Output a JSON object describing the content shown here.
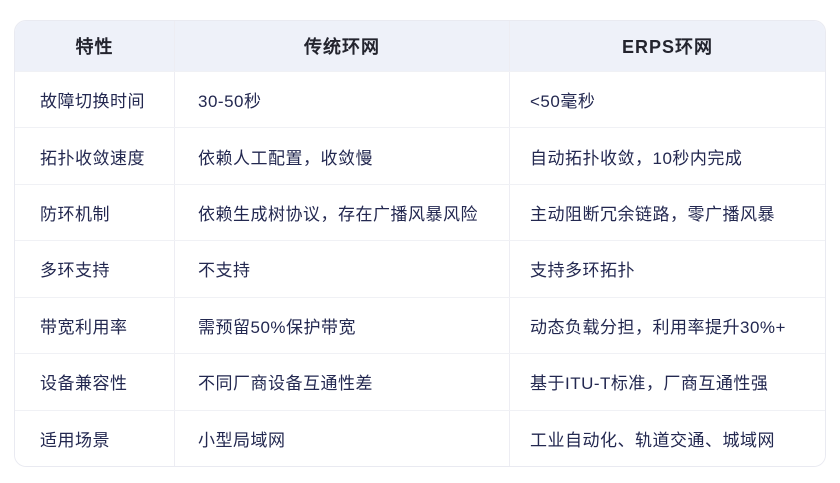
{
  "colors": {
    "header_bg": "#eef1f9",
    "header_text": "#23242e",
    "cell_text": "#232850",
    "outer_border": "#e9eaf1",
    "column_divider": "#ededf3",
    "row_divider": "#f0f1f5",
    "table_bg": "#ffffff"
  },
  "table": {
    "columns": [
      "特性",
      "传统环网",
      "ERPS环网"
    ],
    "rows": [
      {
        "feature": "故障切换时间",
        "traditional": "30-50秒",
        "erps": "<50毫秒"
      },
      {
        "feature": "拓扑收敛速度",
        "traditional": "依赖人工配置，收敛慢",
        "erps": "自动拓扑收敛，10秒内完成"
      },
      {
        "feature": "防环机制",
        "traditional": "依赖生成树协议，存在广播风暴风险",
        "erps": "主动阻断冗余链路，零广播风暴"
      },
      {
        "feature": "多环支持",
        "traditional": "不支持",
        "erps": "支持多环拓扑"
      },
      {
        "feature": "带宽利用率",
        "traditional": "需预留50%保护带宽",
        "erps": "动态负载分担，利用率提升30%+"
      },
      {
        "feature": "设备兼容性",
        "traditional": "不同厂商设备互通性差",
        "erps": "基于ITU-T标准，厂商互通性强"
      },
      {
        "feature": "适用场景",
        "traditional": "小型局域网",
        "erps": "工业自动化、轨道交通、城域网"
      }
    ]
  },
  "chart_data": {
    "type": "table",
    "title": "",
    "columns": [
      "特性",
      "传统环网",
      "ERPS环网"
    ],
    "rows": [
      [
        "故障切换时间",
        "30-50秒",
        "<50毫秒"
      ],
      [
        "拓扑收敛速度",
        "依赖人工配置，收敛慢",
        "自动拓扑收敛，10秒内完成"
      ],
      [
        "防环机制",
        "依赖生成树协议，存在广播风暴风险",
        "主动阻断冗余链路，零广播风暴"
      ],
      [
        "多环支持",
        "不支持",
        "支持多环拓扑"
      ],
      [
        "带宽利用率",
        "需预留50%保护带宽",
        "动态负载分担，利用率提升30%+"
      ],
      [
        "设备兼容性",
        "不同厂商设备互通性差",
        "基于ITU-T标准，厂商互通性强"
      ],
      [
        "适用场景",
        "小型局域网",
        "工业自动化、轨道交通、城域网"
      ]
    ]
  }
}
